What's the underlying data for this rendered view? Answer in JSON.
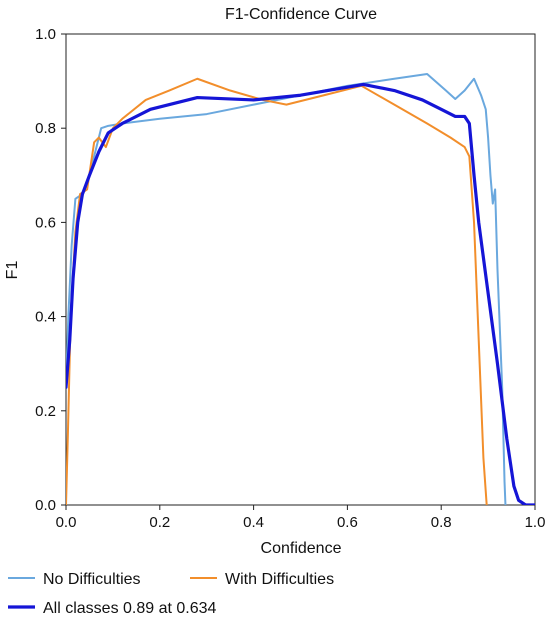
{
  "chart_data": {
    "type": "line",
    "title": "F1-Confidence Curve",
    "xlabel": "Confidence",
    "ylabel": "F1",
    "xlim": [
      0.0,
      1.0
    ],
    "ylim": [
      0.0,
      1.0
    ],
    "x_ticks": [
      "0.0",
      "0.2",
      "0.4",
      "0.6",
      "0.8",
      "1.0"
    ],
    "y_ticks": [
      "0.0",
      "0.2",
      "0.4",
      "0.6",
      "0.8",
      "1.0"
    ],
    "grid": false,
    "legend_position": "bottom-left",
    "series": [
      {
        "name": "No Difficulties",
        "color": "#6aa8de",
        "width": 2,
        "points": [
          [
            0.0,
            0.25
          ],
          [
            0.005,
            0.4
          ],
          [
            0.012,
            0.55
          ],
          [
            0.02,
            0.65
          ],
          [
            0.035,
            0.66
          ],
          [
            0.05,
            0.7
          ],
          [
            0.065,
            0.76
          ],
          [
            0.075,
            0.8
          ],
          [
            0.09,
            0.805
          ],
          [
            0.12,
            0.81
          ],
          [
            0.2,
            0.82
          ],
          [
            0.3,
            0.83
          ],
          [
            0.4,
            0.85
          ],
          [
            0.5,
            0.87
          ],
          [
            0.6,
            0.89
          ],
          [
            0.7,
            0.905
          ],
          [
            0.77,
            0.915
          ],
          [
            0.81,
            0.88
          ],
          [
            0.83,
            0.862
          ],
          [
            0.85,
            0.88
          ],
          [
            0.87,
            0.905
          ],
          [
            0.885,
            0.87
          ],
          [
            0.895,
            0.84
          ],
          [
            0.9,
            0.78
          ],
          [
            0.905,
            0.7
          ],
          [
            0.91,
            0.64
          ],
          [
            0.915,
            0.67
          ],
          [
            0.92,
            0.5
          ],
          [
            0.93,
            0.25
          ],
          [
            0.935,
            0.05
          ],
          [
            0.937,
            0.0
          ]
        ]
      },
      {
        "name": "With Difficulties",
        "color": "#f28e2b",
        "width": 2,
        "points": [
          [
            0.0,
            0.0
          ],
          [
            0.004,
            0.15
          ],
          [
            0.01,
            0.4
          ],
          [
            0.02,
            0.58
          ],
          [
            0.03,
            0.66
          ],
          [
            0.045,
            0.67
          ],
          [
            0.06,
            0.77
          ],
          [
            0.07,
            0.78
          ],
          [
            0.085,
            0.76
          ],
          [
            0.1,
            0.8
          ],
          [
            0.12,
            0.82
          ],
          [
            0.17,
            0.86
          ],
          [
            0.22,
            0.88
          ],
          [
            0.28,
            0.905
          ],
          [
            0.35,
            0.88
          ],
          [
            0.42,
            0.86
          ],
          [
            0.47,
            0.85
          ],
          [
            0.55,
            0.87
          ],
          [
            0.63,
            0.89
          ],
          [
            0.7,
            0.85
          ],
          [
            0.77,
            0.81
          ],
          [
            0.82,
            0.78
          ],
          [
            0.85,
            0.76
          ],
          [
            0.86,
            0.74
          ],
          [
            0.87,
            0.6
          ],
          [
            0.88,
            0.35
          ],
          [
            0.89,
            0.1
          ],
          [
            0.897,
            0.0
          ]
        ]
      },
      {
        "name": "All classes 0.89 at 0.634",
        "color": "#1515d6",
        "width": 3.2,
        "points": [
          [
            0.0,
            0.25
          ],
          [
            0.008,
            0.35
          ],
          [
            0.015,
            0.48
          ],
          [
            0.025,
            0.6
          ],
          [
            0.035,
            0.66
          ],
          [
            0.05,
            0.7
          ],
          [
            0.07,
            0.75
          ],
          [
            0.09,
            0.79
          ],
          [
            0.12,
            0.81
          ],
          [
            0.18,
            0.84
          ],
          [
            0.28,
            0.865
          ],
          [
            0.4,
            0.86
          ],
          [
            0.5,
            0.87
          ],
          [
            0.634,
            0.893
          ],
          [
            0.7,
            0.88
          ],
          [
            0.76,
            0.86
          ],
          [
            0.8,
            0.84
          ],
          [
            0.83,
            0.825
          ],
          [
            0.85,
            0.825
          ],
          [
            0.86,
            0.81
          ],
          [
            0.87,
            0.7
          ],
          [
            0.88,
            0.6
          ],
          [
            0.9,
            0.45
          ],
          [
            0.92,
            0.3
          ],
          [
            0.94,
            0.14
          ],
          [
            0.955,
            0.04
          ],
          [
            0.965,
            0.01
          ],
          [
            0.98,
            0.0
          ],
          [
            1.0,
            0.0
          ]
        ]
      }
    ]
  }
}
